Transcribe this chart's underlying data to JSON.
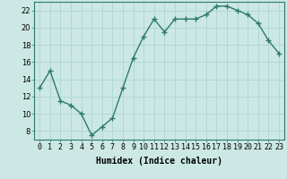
{
  "x": [
    0,
    1,
    2,
    3,
    4,
    5,
    6,
    7,
    8,
    9,
    10,
    11,
    12,
    13,
    14,
    15,
    16,
    17,
    18,
    19,
    20,
    21,
    22,
    23
  ],
  "y": [
    13,
    15,
    11.5,
    11,
    10,
    7.5,
    8.5,
    9.5,
    13,
    16.5,
    19,
    21,
    19.5,
    21,
    21,
    21,
    21.5,
    22.5,
    22.5,
    22,
    21.5,
    20.5,
    18.5,
    17
  ],
  "line_color": "#2d7a6a",
  "marker": "+",
  "marker_size": 4,
  "bg_color": "#cce8e4",
  "grid_color": "#b0d8d2",
  "xlabel": "Humidex (Indice chaleur)",
  "ylim": [
    7,
    23
  ],
  "xlim": [
    -0.5,
    23.5
  ],
  "yticks": [
    8,
    10,
    12,
    14,
    16,
    18,
    20,
    22
  ],
  "xtick_labels": [
    "0",
    "1",
    "2",
    "3",
    "4",
    "5",
    "6",
    "7",
    "8",
    "9",
    "10",
    "11",
    "12",
    "13",
    "14",
    "15",
    "16",
    "17",
    "18",
    "19",
    "20",
    "21",
    "22",
    "23"
  ],
  "xlabel_fontsize": 7,
  "tick_fontsize": 6,
  "linewidth": 1.0
}
